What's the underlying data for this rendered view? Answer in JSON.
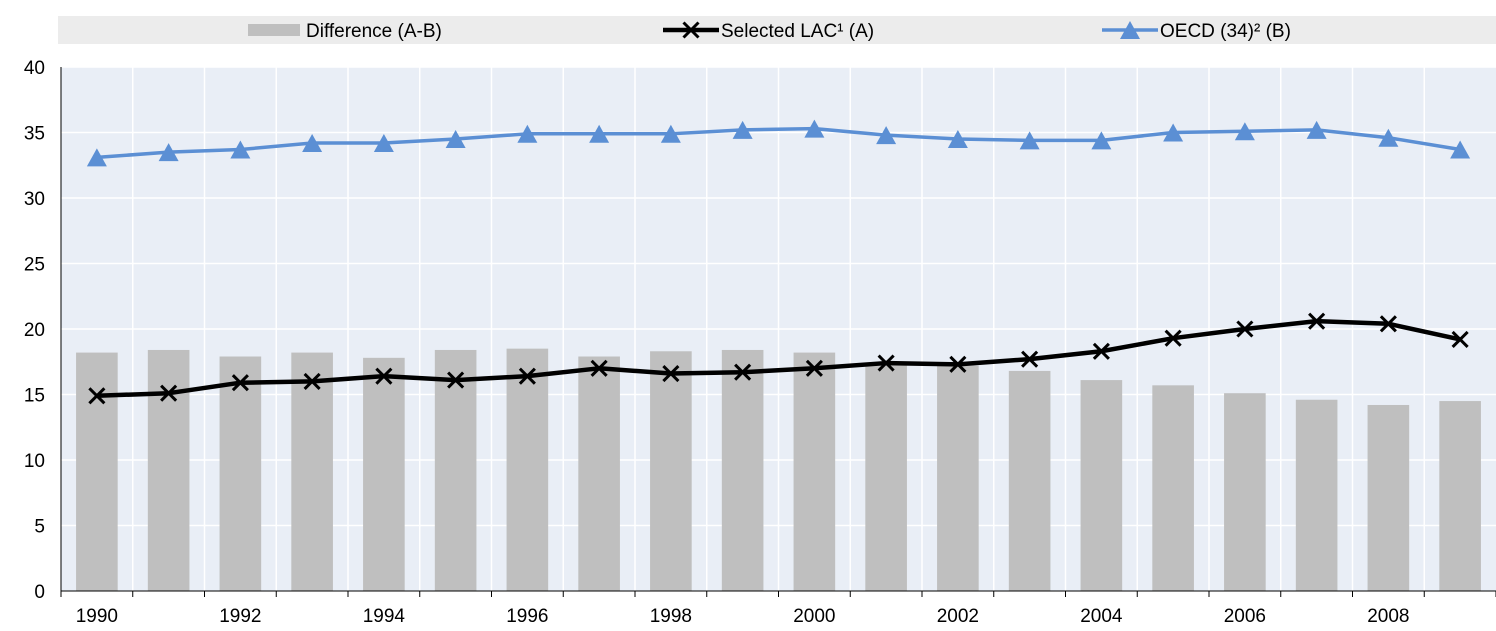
{
  "chart_data": {
    "type": "bar",
    "x": [
      "1990",
      "1991",
      "1992",
      "1993",
      "1994",
      "1995",
      "1996",
      "1997",
      "1998",
      "1999",
      "2000",
      "2001",
      "2002",
      "2003",
      "2004",
      "2005",
      "2006",
      "2007",
      "2008",
      "2009"
    ],
    "x_tick_labels": [
      "1990",
      "",
      "1992",
      "",
      "1994",
      "",
      "1996",
      "",
      "1998",
      "",
      "2000",
      "",
      "2002",
      "",
      "2004",
      "",
      "2006",
      "",
      "2008",
      ""
    ],
    "ylim": [
      0,
      40
    ],
    "y_ticks": [
      0,
      5,
      10,
      15,
      20,
      25,
      30,
      35,
      40
    ],
    "grid": true,
    "legend_position": "top",
    "series": [
      {
        "name": "Difference (A-B)",
        "kind": "bar",
        "color": "#bfbfbf",
        "values": [
          18.2,
          18.4,
          17.9,
          18.2,
          17.8,
          18.4,
          18.5,
          17.9,
          18.3,
          18.4,
          18.2,
          17.4,
          17.2,
          16.8,
          16.1,
          15.7,
          15.1,
          14.6,
          14.2,
          14.5
        ]
      },
      {
        "name": "Selected LAC¹ (A)",
        "kind": "line",
        "marker": "x",
        "color": "#000000",
        "values": [
          14.9,
          15.1,
          15.9,
          16.0,
          16.4,
          16.1,
          16.4,
          17.0,
          16.6,
          16.7,
          17.0,
          17.4,
          17.3,
          17.7,
          18.3,
          19.3,
          20.0,
          20.6,
          20.4,
          19.2
        ]
      },
      {
        "name": "OECD (34)² (B)",
        "kind": "line",
        "marker": "triangle",
        "color": "#5b8fd4",
        "values": [
          33.1,
          33.5,
          33.7,
          34.2,
          34.2,
          34.5,
          34.9,
          34.9,
          34.9,
          35.2,
          35.3,
          34.8,
          34.5,
          34.4,
          34.4,
          35.0,
          35.1,
          35.2,
          34.6,
          33.7
        ]
      }
    ]
  },
  "colors": {
    "plot_background": "#e9eef6",
    "legend_background": "#ececec",
    "gridline": "#ffffff"
  }
}
